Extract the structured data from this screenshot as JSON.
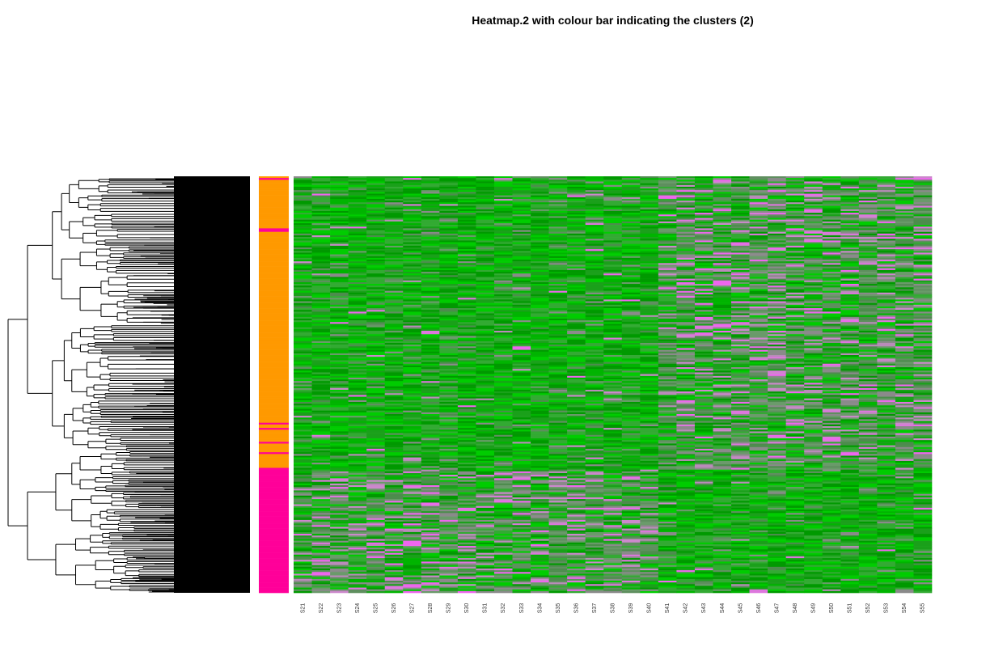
{
  "chart_data": {
    "type": "heatmap",
    "title": "Heatmap.2 with colour bar indicating the clusters (2)",
    "xlabel": "",
    "ylabel": "",
    "columns": [
      "S21",
      "S22",
      "S23",
      "S24",
      "S25",
      "S26",
      "S27",
      "S28",
      "S29",
      "S30",
      "S31",
      "S32",
      "S33",
      "S34",
      "S35",
      "S36",
      "S37",
      "S38",
      "S39",
      "S40",
      "S41",
      "S42",
      "S43",
      "S44",
      "S45",
      "S46",
      "S47",
      "S48",
      "S49",
      "S50",
      "S51",
      "S52",
      "S53",
      "S54",
      "S55"
    ],
    "row_dendrogram": true,
    "column_dendrogram": false,
    "cluster_colours": {
      "cluster_1": "#ff9900",
      "cluster_2": "#ff0099"
    },
    "cluster_split_fraction": 0.706,
    "value_colours": {
      "low": "#00c800",
      "mid": "#3a8a3a",
      "high": "#ee66ee"
    },
    "column_groups": [
      {
        "from": "S21",
        "to": "S40",
        "pattern": "low in upper rows, mixed in lower rows"
      },
      {
        "from": "S41",
        "to": "S55",
        "pattern": "mixed in upper rows, low in lower rows"
      }
    ],
    "grid": false,
    "legend": "none"
  }
}
